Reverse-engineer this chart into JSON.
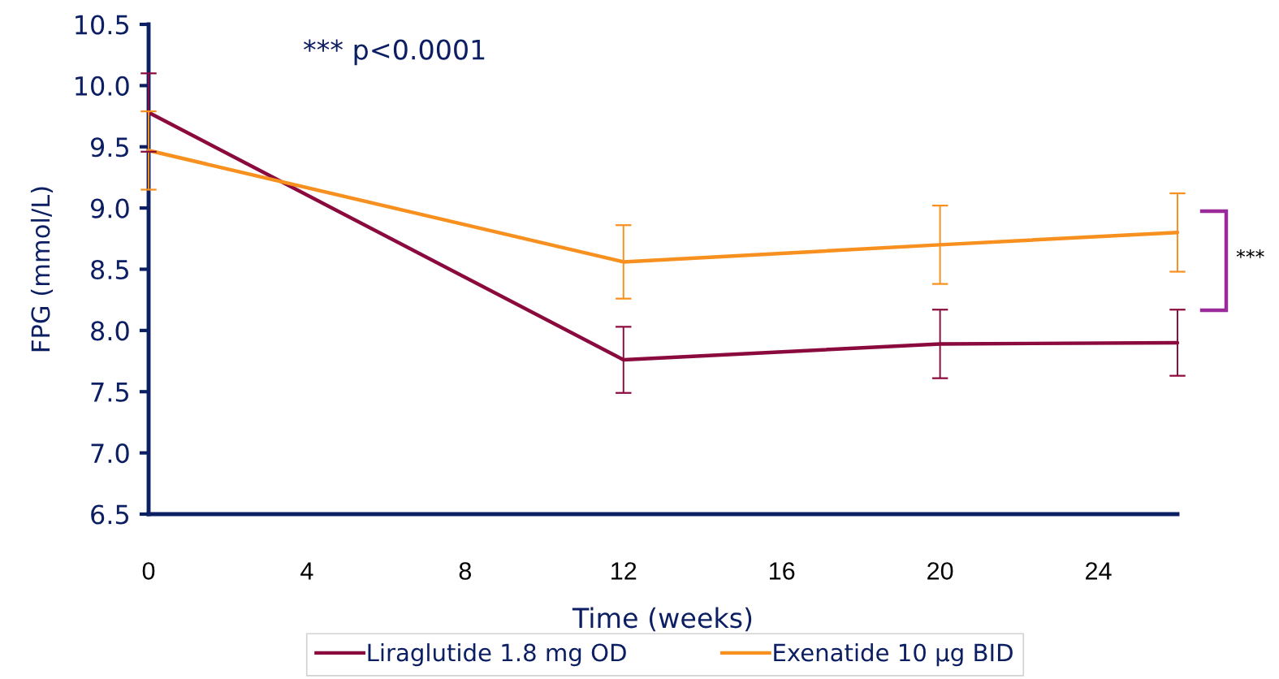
{
  "chart_data": {
    "type": "line",
    "xlabel": "Time (weeks)",
    "ylabel": "FPG (mmol/L)",
    "x": [
      0,
      12,
      20,
      26
    ],
    "series": [
      {
        "name": "Liraglutide 1.8 mg OD",
        "color": "#8b0a3e",
        "values": [
          9.78,
          7.76,
          7.89,
          7.9
        ],
        "errors": [
          0.32,
          0.27,
          0.28,
          0.27
        ]
      },
      {
        "name": "Exenatide 10 µg BID",
        "color": "#f7901e",
        "values": [
          9.47,
          8.56,
          8.7,
          8.8
        ],
        "errors": [
          0.32,
          0.3,
          0.32,
          0.32
        ]
      }
    ],
    "xlim": [
      0,
      26
    ],
    "xticks": [
      0,
      4,
      8,
      12,
      16,
      20,
      24
    ],
    "ylim": [
      6.5,
      10.5
    ],
    "yticks": [
      6.5,
      {
        "value": 7,
        "label": "7.0"
      },
      7.5,
      {
        "value": 8,
        "label": "8.0"
      },
      8.5,
      {
        "value": 9,
        "label": "9.0"
      },
      9.5,
      {
        "value": 10,
        "label": "10.0"
      },
      10.5
    ],
    "annotations": [
      "*** p<0.0001",
      "***"
    ],
    "grid": false,
    "legend": "bottom",
    "marker": "none",
    "line_style": "solid"
  }
}
